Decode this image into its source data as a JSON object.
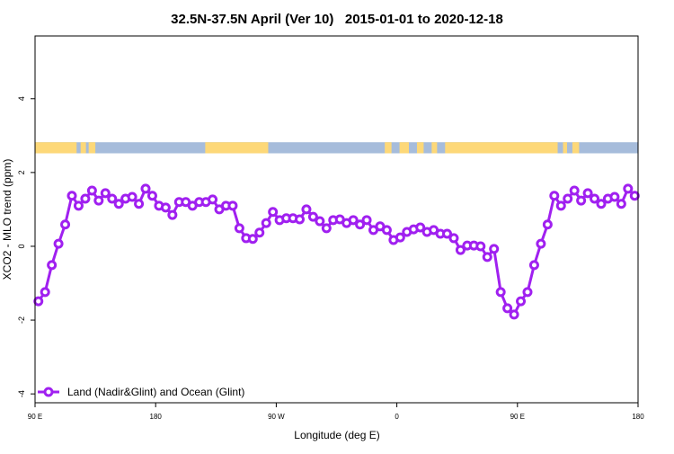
{
  "chart_data": {
    "type": "line",
    "title": "32.5N-37.5N April (Ver 10)   2015-01-01 to 2020-12-18",
    "xlabel": "Longitude (deg E)",
    "ylabel": "XCO2 - MLO trend (ppm)",
    "xlim": [
      90,
      540
    ],
    "ylim": [
      -4.24,
      5.7
    ],
    "x_ticks": [
      90,
      180,
      270,
      360,
      450,
      540
    ],
    "x_tick_labels": [
      "90 E",
      "180",
      "90 W",
      "0",
      "90 E",
      "180"
    ],
    "y_ticks": [
      -4,
      -2,
      0,
      2,
      4
    ],
    "y_tick_labels": [
      "-4",
      "-2",
      "0",
      "2",
      "4"
    ],
    "grid": false,
    "legend": {
      "position": "bottom-left",
      "entries": [
        "Land (Nadir&Glint) and Ocean (Glint)"
      ]
    },
    "colors": {
      "series": "#a020f0",
      "land": "#fdd878",
      "ocean": "#a6bcdb"
    },
    "surface_band": {
      "value_range": [
        2.52,
        2.82
      ],
      "land_ranges_deg": [
        [
          90,
          121
        ],
        [
          124,
          128
        ],
        [
          130,
          135
        ],
        [
          217,
          264
        ],
        [
          351,
          356
        ],
        [
          362,
          369
        ],
        [
          375,
          380
        ],
        [
          386,
          390
        ],
        [
          396,
          480
        ],
        [
          484,
          487
        ],
        [
          491,
          496
        ]
      ]
    },
    "series": [
      {
        "name": "Land (Nadir&Glint) and Ocean (Glint)",
        "x": [
          92.5,
          97.5,
          102.5,
          107.5,
          112.5,
          117.5,
          122.5,
          127.5,
          132.5,
          137.5,
          142.5,
          147.5,
          152.5,
          157.5,
          162.5,
          167.5,
          172.5,
          177.5,
          182.5,
          187.5,
          192.5,
          197.5,
          202.5,
          207.5,
          212.5,
          217.5,
          222.5,
          227.5,
          232.5,
          237.5,
          242.5,
          247.5,
          252.5,
          257.5,
          262.5,
          267.5,
          272.5,
          277.5,
          282.5,
          287.5,
          292.5,
          297.5,
          302.5,
          307.5,
          312.5,
          317.5,
          322.5,
          327.5,
          332.5,
          337.5,
          342.5,
          347.5,
          352.5,
          357.5,
          362.5,
          367.5,
          372.5,
          377.5,
          382.5,
          387.5,
          392.5,
          397.5,
          402.5,
          407.5,
          412.5,
          417.5,
          422.5,
          427.5,
          432.5,
          437.5,
          442.5,
          447.5,
          452.5,
          457.5,
          462.5,
          467.5,
          472.5,
          477.5,
          482.5,
          487.5,
          492.5,
          497.5,
          502.5,
          507.5,
          512.5,
          517.5,
          522.5,
          527.5,
          532.5,
          537.5
        ],
        "values": [
          -1.49,
          -1.24,
          -0.51,
          0.07,
          0.59,
          1.37,
          1.1,
          1.29,
          1.51,
          1.24,
          1.44,
          1.29,
          1.15,
          1.29,
          1.34,
          1.15,
          1.56,
          1.37,
          1.1,
          1.05,
          0.85,
          1.2,
          1.2,
          1.1,
          1.2,
          1.2,
          1.27,
          1.0,
          1.1,
          1.1,
          0.49,
          0.22,
          0.2,
          0.37,
          0.63,
          0.93,
          0.71,
          0.76,
          0.76,
          0.73,
          1.0,
          0.8,
          0.68,
          0.49,
          0.71,
          0.73,
          0.63,
          0.71,
          0.59,
          0.71,
          0.44,
          0.54,
          0.44,
          0.17,
          0.24,
          0.39,
          0.46,
          0.51,
          0.39,
          0.44,
          0.34,
          0.34,
          0.22,
          -0.1,
          0.02,
          0.02,
          0.0,
          -0.29,
          -0.07,
          -1.24,
          -1.68,
          -1.85,
          -1.49,
          -1.24,
          -0.51,
          0.07,
          0.59,
          1.37,
          1.1,
          1.29,
          1.51,
          1.24,
          1.44,
          1.29,
          1.15,
          1.29,
          1.34,
          1.15,
          1.56,
          1.37
        ]
      }
    ]
  }
}
